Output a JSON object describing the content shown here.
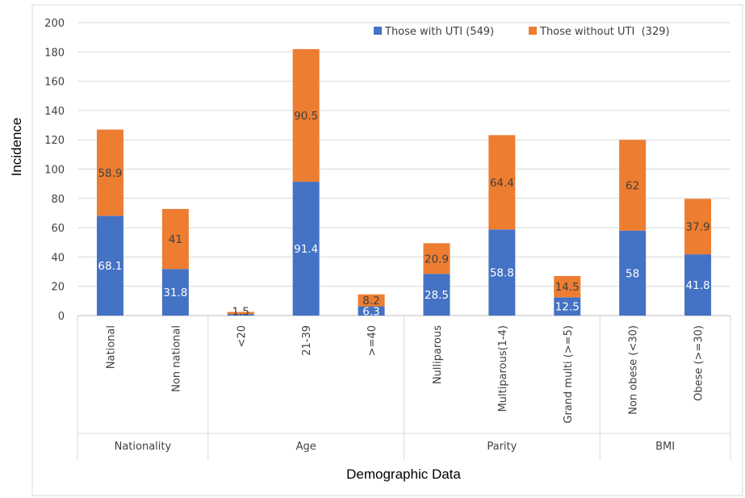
{
  "colors": {
    "with_uti": "#4472c4",
    "without_uti": "#ed7d31",
    "grid": "#d9d9d9",
    "axis_text": "#404040",
    "label_on_blue": "#ffffff",
    "label_on_orange": "#404040"
  },
  "chart_data": {
    "type": "bar",
    "stacked": true,
    "title": "",
    "xlabel": "Demographic Data",
    "ylabel": "Incidence",
    "ylim": [
      0,
      200
    ],
    "yticks": [
      "0",
      "20",
      "40",
      "60",
      "80",
      "100",
      "120",
      "140",
      "160",
      "180",
      "200"
    ],
    "grid": true,
    "legend_position": "top-right",
    "categories": [
      "National",
      "Non national",
      "<20",
      "21-39",
      ">=40",
      "Nulliparous",
      "Multiparous(1-4)",
      "Grand multi (>=5)",
      "Non obese (<30)",
      "Obese (>=30)"
    ],
    "groups": [
      {
        "name": "Nationality",
        "count": 2
      },
      {
        "name": "Age",
        "count": 3
      },
      {
        "name": "Parity",
        "count": 3
      },
      {
        "name": "BMI",
        "count": 2
      }
    ],
    "series": [
      {
        "name": "Those with UTI (549)",
        "values": [
          68.1,
          31.8,
          1,
          91.4,
          6.3,
          28.5,
          58.8,
          12.5,
          58,
          41.8
        ],
        "labels": [
          "68.1",
          "31.8",
          "",
          "91.4",
          "6.3",
          "28.5",
          "58.8",
          "12.5",
          "58",
          "41.8"
        ]
      },
      {
        "name": "Those without UTI  (329)",
        "values": [
          58.9,
          41,
          1.5,
          90.5,
          8.2,
          20.9,
          64.4,
          14.5,
          62,
          37.9
        ],
        "labels": [
          "58.9",
          "41",
          "1.5",
          "90.5",
          "8.2",
          "20.9",
          "64.4",
          "14.5",
          "62",
          "37.9"
        ]
      }
    ]
  }
}
